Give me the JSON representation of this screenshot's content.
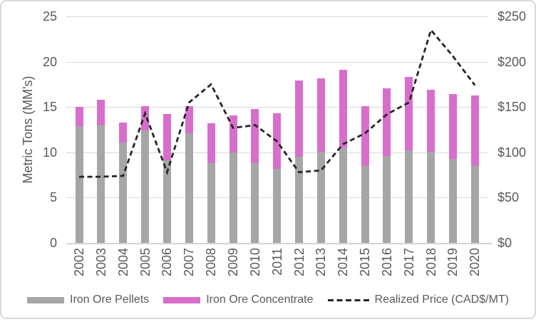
{
  "chart_data": {
    "type": "bar",
    "subtype": "stacked-bar-with-line-overlay",
    "categories": [
      "2002",
      "2003",
      "2004",
      "2005",
      "2006",
      "2007",
      "2008",
      "2009",
      "2010",
      "2011",
      "2012",
      "2013",
      "2014",
      "2015",
      "2016",
      "2017",
      "2018",
      "2019",
      "2020"
    ],
    "series": [
      {
        "name": "Iron Ore Pellets",
        "type": "bar",
        "stack": "tons",
        "color": "#a6a6a6",
        "axis": "left",
        "values": [
          12.9,
          13.0,
          11.1,
          12.4,
          9.1,
          12.1,
          8.8,
          10.0,
          8.8,
          8.2,
          9.5,
          10.1,
          10.5,
          8.5,
          9.6,
          10.2,
          10.1,
          9.3,
          8.5
        ]
      },
      {
        "name": "Iron Ore Concentrate",
        "type": "bar",
        "stack": "tons",
        "color": "#d86ecc",
        "axis": "left",
        "values": [
          2.1,
          2.8,
          2.2,
          2.7,
          5.1,
          3.0,
          4.4,
          4.1,
          6.0,
          6.1,
          8.4,
          8.1,
          8.6,
          6.6,
          7.5,
          8.1,
          6.8,
          7.1,
          7.8
        ]
      },
      {
        "name": "Realized Price (CAD$/MT)",
        "type": "line",
        "style": "dashed",
        "color": "#262626",
        "axis": "right",
        "values": [
          73,
          73,
          74,
          143,
          78,
          155,
          175,
          127,
          130,
          112,
          78,
          80,
          109,
          121,
          142,
          155,
          235,
          206,
          174
        ]
      }
    ],
    "stacked_totals": [
      15.0,
      15.8,
      13.3,
      15.1,
      14.2,
      15.1,
      13.2,
      14.1,
      14.8,
      14.3,
      17.9,
      18.2,
      19.1,
      15.1,
      17.1,
      18.3,
      16.9,
      16.4,
      16.3
    ],
    "left_axis": {
      "title": "Metric Tons (MM's)",
      "min": 0,
      "max": 25,
      "step": 5,
      "ticks": [
        "0",
        "5",
        "10",
        "15",
        "20",
        "25"
      ]
    },
    "right_axis": {
      "min": 0,
      "max": 250,
      "step": 50,
      "ticks": [
        "$0",
        "$50",
        "$100",
        "$150",
        "$200",
        "$250"
      ]
    },
    "xlabel": "",
    "title": "",
    "grid": true,
    "gridline_color": "#d9d9d9",
    "legend_position": "bottom"
  },
  "legend": {
    "pellets_label": "Iron Ore Pellets",
    "concentrate_label": "Iron Ore Concentrate",
    "price_label": "Realized Price (CAD$/MT)"
  },
  "colors": {
    "pellets": "#a6a6a6",
    "concentrate": "#d86ecc",
    "price_line": "#262626",
    "text": "#595959",
    "gridline": "#d9d9d9"
  }
}
